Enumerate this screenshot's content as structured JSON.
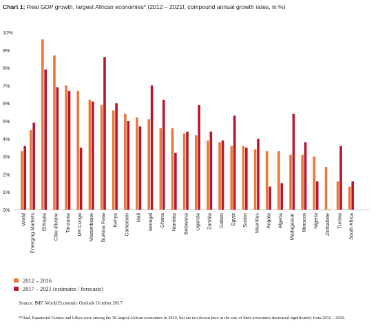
{
  "title": {
    "prefix": "Chart 1:",
    "text": " Real GDP growth, largest African economies* (2012 – 2021f, compound annual growth rates, in %)"
  },
  "colors": {
    "series1": "#e8793a",
    "series2": "#b8172e",
    "axis": "#bbbbbb",
    "text": "#222222"
  },
  "chart_data": {
    "type": "bar",
    "title": "Real GDP growth, largest African economies* (2012 – 2021f, compound annual growth rates, in %)",
    "xlabel": "",
    "ylabel": "",
    "ylim": [
      0,
      10
    ],
    "yticks": [
      "0%",
      "1%",
      "2%",
      "3%",
      "4%",
      "5%",
      "6%",
      "7%",
      "8%",
      "9%",
      "10%"
    ],
    "grid": false,
    "legend": "bottom-left",
    "categories": [
      "World",
      "Emerging Markets",
      "Ethiopia",
      "Côte d'Ivoire",
      "Tanzania",
      "DR Congo",
      "Mozambique",
      "Burkina Faso",
      "Kenya",
      "Cameroon",
      "Mali",
      "Senegal",
      "Ghana",
      "Namibia",
      "Botswana",
      "Uganda",
      "Zambia",
      "Gabon",
      "Egypt",
      "Sudan",
      "Mauritius",
      "Angola",
      "Algeria",
      "Madagascar",
      "Morocco",
      "Nigeria",
      "Zimbabwe",
      "Tunisia",
      "South Africa"
    ],
    "series": [
      {
        "name": "2012 – 2016",
        "values": [
          3.3,
          4.5,
          9.6,
          8.7,
          7.0,
          6.7,
          6.2,
          5.9,
          5.6,
          5.4,
          5.2,
          5.1,
          4.6,
          4.6,
          4.3,
          4.2,
          3.9,
          3.8,
          3.6,
          3.6,
          3.4,
          3.3,
          3.3,
          3.1,
          3.1,
          3.0,
          2.4,
          1.6,
          1.3
        ]
      },
      {
        "name": "2017 – 2021 (estimates / forecasts)",
        "values": [
          3.6,
          4.9,
          7.9,
          6.9,
          6.7,
          3.5,
          6.1,
          8.6,
          6.0,
          5.0,
          4.7,
          7.0,
          6.2,
          3.2,
          4.4,
          5.9,
          4.4,
          3.9,
          5.3,
          3.5,
          4.0,
          1.3,
          1.5,
          5.4,
          3.8,
          1.6,
          0.0,
          3.6,
          1.6
        ]
      }
    ]
  },
  "legend": {
    "items": [
      "2012 – 2016",
      "2017 – 2021 (estimates / forecasts)"
    ]
  },
  "source": "Source: IMF, World Economic Outlook October 2017",
  "footnote": "*Chad, Equatorial Guinea and Libya were among the 30 largest African economies in 2016, but are not shown here as the size of their economies decreased significantly from 2012 – 2016."
}
